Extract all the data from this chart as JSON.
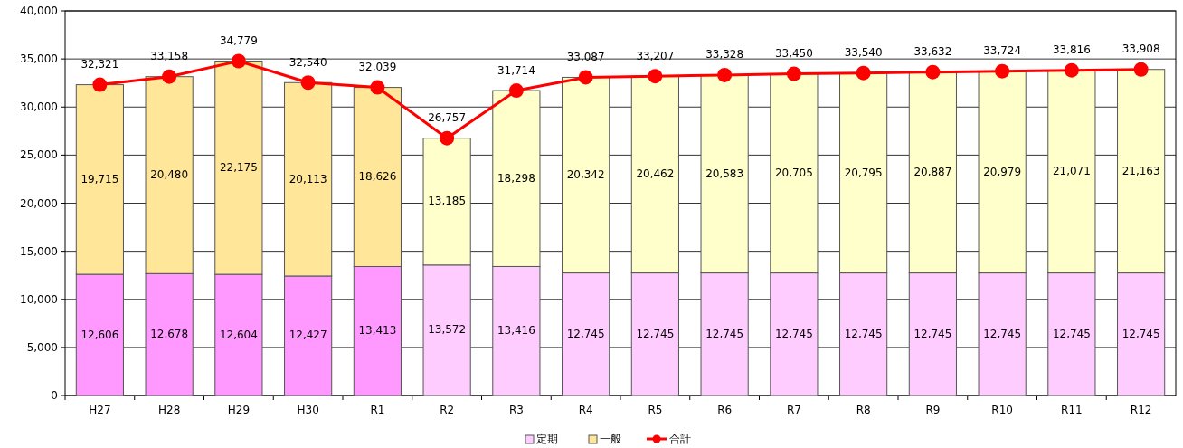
{
  "chart_data": {
    "type": "bar",
    "stacked": true,
    "categories": [
      "H27",
      "H28",
      "H29",
      "H30",
      "R1",
      "R2",
      "R3",
      "R4",
      "R5",
      "R6",
      "R7",
      "R8",
      "R9",
      "R10",
      "R11",
      "R12"
    ],
    "series": [
      {
        "name": "定期",
        "color": "#ffccff",
        "colors": [
          "#ff99ff",
          "#ff99ff",
          "#ff99ff",
          "#ff99ff",
          "#ff99ff",
          "#ffccff",
          "#ffccff",
          "#ffccff",
          "#ffccff",
          "#ffccff",
          "#ffccff",
          "#ffccff",
          "#ffccff",
          "#ffccff",
          "#ffccff",
          "#ffccff"
        ],
        "values": [
          12606,
          12678,
          12604,
          12427,
          13413,
          13572,
          13416,
          12745,
          12745,
          12745,
          12745,
          12745,
          12745,
          12745,
          12745,
          12745
        ],
        "value_labels": [
          "12,606",
          "12,678",
          "12,604",
          "12,427",
          "13,413",
          "13,572",
          "13,416",
          "12,745",
          "12,745",
          "12,745",
          "12,745",
          "12,745",
          "12,745",
          "12,745",
          "12,745",
          "12,745"
        ]
      },
      {
        "name": "一般",
        "color": "#ffe699",
        "colors": [
          "#ffe699",
          "#ffe699",
          "#ffe699",
          "#ffe699",
          "#ffe699",
          "#ffffcc",
          "#ffffcc",
          "#ffffcc",
          "#ffffcc",
          "#ffffcc",
          "#ffffcc",
          "#ffffcc",
          "#ffffcc",
          "#ffffcc",
          "#ffffcc",
          "#ffffcc"
        ],
        "values": [
          19715,
          20480,
          22175,
          20113,
          18626,
          13185,
          18298,
          20342,
          20462,
          20583,
          20705,
          20795,
          20887,
          20979,
          21071,
          21163
        ],
        "value_labels": [
          "19,715",
          "20,480",
          "22,175",
          "20,113",
          "18,626",
          "13,185",
          "18,298",
          "20,342",
          "20,462",
          "20,583",
          "20,705",
          "20,795",
          "20,887",
          "20,979",
          "21,071",
          "21,163"
        ]
      },
      {
        "name": "合計",
        "type": "line",
        "color": "#ff0000",
        "values": [
          32321,
          33158,
          34779,
          32540,
          32039,
          26757,
          31714,
          33087,
          33207,
          33328,
          33450,
          33540,
          33632,
          33724,
          33816,
          33908
        ],
        "value_labels": [
          "32,321",
          "33,158",
          "34,779",
          "32,540",
          "32,039",
          "26,757",
          "31,714",
          "33,087",
          "33,207",
          "33,328",
          "33,450",
          "33,540",
          "33,632",
          "33,724",
          "33,816",
          "33,908"
        ]
      }
    ],
    "ylim": [
      0,
      40000
    ],
    "yticks": [
      0,
      {
        "value": 5000,
        "label": "5,000"
      },
      {
        "value": 10000,
        "label": "10,000"
      },
      {
        "value": 15000,
        "label": "15,000"
      },
      {
        "value": 20000,
        "label": "20,000"
      },
      {
        "value": 25000,
        "label": "25,000"
      },
      {
        "value": 30000,
        "label": "30,000"
      },
      {
        "value": 35000,
        "label": "35,000"
      },
      {
        "value": 40000,
        "label": "40,000"
      }
    ],
    "grid": "y",
    "legend": "bottom",
    "marker": "circle"
  }
}
